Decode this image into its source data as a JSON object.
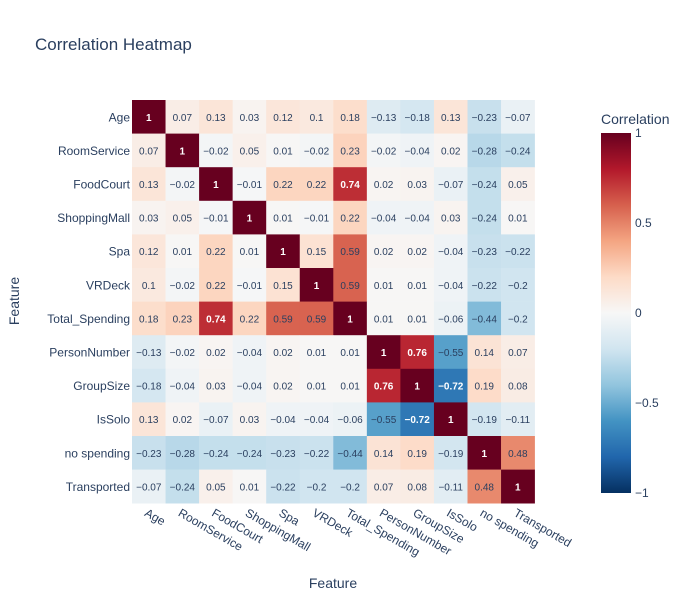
{
  "chart_data": {
    "type": "heatmap",
    "title": "Correlation Heatmap",
    "xlabel": "Feature",
    "ylabel": "Feature",
    "x": [
      "Age",
      "RoomService",
      "FoodCourt",
      "ShoppingMall",
      "Spa",
      "VRDeck",
      "Total_Spending",
      "PersonNumber",
      "GroupSize",
      "IsSolo",
      "no spending",
      "Transported"
    ],
    "y": [
      "Age",
      "RoomService",
      "FoodCourt",
      "ShoppingMall",
      "Spa",
      "VRDeck",
      "Total_Spending",
      "PersonNumber",
      "GroupSize",
      "IsSolo",
      "no spending",
      "Transported"
    ],
    "z": [
      [
        1,
        0.07,
        0.13,
        0.03,
        0.12,
        0.1,
        0.18,
        -0.13,
        -0.18,
        0.13,
        -0.23,
        -0.07
      ],
      [
        0.07,
        1,
        -0.02,
        0.05,
        0.01,
        -0.02,
        0.23,
        -0.02,
        -0.04,
        0.02,
        -0.28,
        -0.24
      ],
      [
        0.13,
        -0.02,
        1,
        -0.01,
        0.22,
        0.22,
        0.74,
        0.02,
        0.03,
        -0.07,
        -0.24,
        0.05
      ],
      [
        0.03,
        0.05,
        -0.01,
        1,
        0.01,
        -0.01,
        0.22,
        -0.04,
        -0.04,
        0.03,
        -0.24,
        0.01
      ],
      [
        0.12,
        0.01,
        0.22,
        0.01,
        1,
        0.15,
        0.59,
        0.02,
        0.02,
        -0.04,
        -0.23,
        -0.22
      ],
      [
        0.1,
        -0.02,
        0.22,
        -0.01,
        0.15,
        1,
        0.59,
        0.01,
        0.01,
        -0.04,
        -0.22,
        -0.2
      ],
      [
        0.18,
        0.23,
        0.74,
        0.22,
        0.59,
        0.59,
        1,
        0.01,
        0.01,
        -0.06,
        -0.44,
        -0.2
      ],
      [
        -0.13,
        -0.02,
        0.02,
        -0.04,
        0.02,
        0.01,
        0.01,
        1,
        0.76,
        -0.55,
        0.14,
        0.07
      ],
      [
        -0.18,
        -0.04,
        0.03,
        -0.04,
        0.02,
        0.01,
        0.01,
        0.76,
        1,
        -0.72,
        0.19,
        0.08
      ],
      [
        0.13,
        0.02,
        -0.07,
        0.03,
        -0.04,
        -0.04,
        -0.06,
        -0.55,
        -0.72,
        1,
        -0.19,
        -0.11
      ],
      [
        -0.23,
        -0.28,
        -0.24,
        -0.24,
        -0.23,
        -0.22,
        -0.44,
        0.14,
        0.19,
        -0.19,
        1,
        0.48
      ],
      [
        -0.07,
        -0.24,
        0.05,
        0.01,
        -0.22,
        -0.2,
        -0.2,
        0.07,
        0.08,
        -0.11,
        0.48,
        1
      ]
    ],
    "zlim": [
      -1,
      1
    ],
    "colorscale": "RdBu",
    "colorbar": {
      "title": "Correlation",
      "ticks": [
        1,
        0.5,
        0,
        -0.5,
        -1
      ],
      "tick_labels": [
        "1",
        "0.5",
        "0",
        "−0.5",
        "−1"
      ]
    },
    "grid": false,
    "legend_position": "right"
  }
}
